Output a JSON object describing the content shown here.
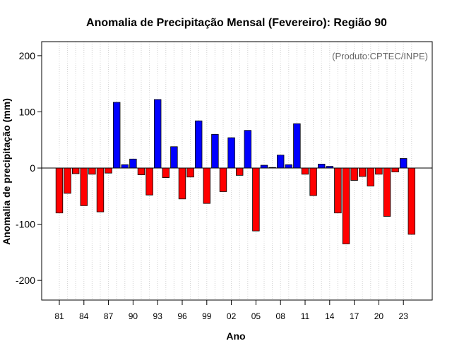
{
  "chart_data": {
    "type": "bar",
    "title": "Anomalia de Precipitação Mensal (Fevereiro): Região 90",
    "xlabel": "Ano",
    "ylabel": "Anomalia de precipitação (mm)",
    "annotation": "(Produto:CPTEC/INPE)",
    "ylim": [
      -235,
      225
    ],
    "yticks": [
      -200,
      -100,
      0,
      100,
      200
    ],
    "xtick_labels": [
      "81",
      "84",
      "87",
      "90",
      "93",
      "96",
      "99",
      "02",
      "05",
      "08",
      "11",
      "14",
      "17",
      "20",
      "23"
    ],
    "xtick_label_every": 3,
    "grid": "vertical dotted",
    "positive_color": "#0000ff",
    "negative_color": "#ff0000",
    "categories": [
      "1981",
      "1982",
      "1983",
      "1984",
      "1985",
      "1986",
      "1987",
      "1988",
      "1989",
      "1990",
      "1991",
      "1992",
      "1993",
      "1994",
      "1995",
      "1996",
      "1997",
      "1998",
      "1999",
      "2000",
      "2001",
      "2002",
      "2003",
      "2004",
      "2005",
      "2006",
      "2007",
      "2008",
      "2009",
      "2010",
      "2011",
      "2012",
      "2013",
      "2014",
      "2015",
      "2016",
      "2017",
      "2018",
      "2019",
      "2020",
      "2021",
      "2022",
      "2023",
      "2024"
    ],
    "values": [
      -80,
      -45,
      -10,
      -67,
      -11,
      -78,
      -9,
      117,
      6,
      16,
      -12,
      -48,
      122,
      -17,
      38,
      -55,
      -16,
      84,
      -63,
      60,
      -42,
      54,
      -13,
      67,
      -112,
      5,
      1,
      23,
      6,
      79,
      -11,
      -49,
      7,
      3,
      -80,
      -135,
      -22,
      -15,
      -32,
      -11,
      -86,
      -7,
      17,
      -118
    ]
  }
}
